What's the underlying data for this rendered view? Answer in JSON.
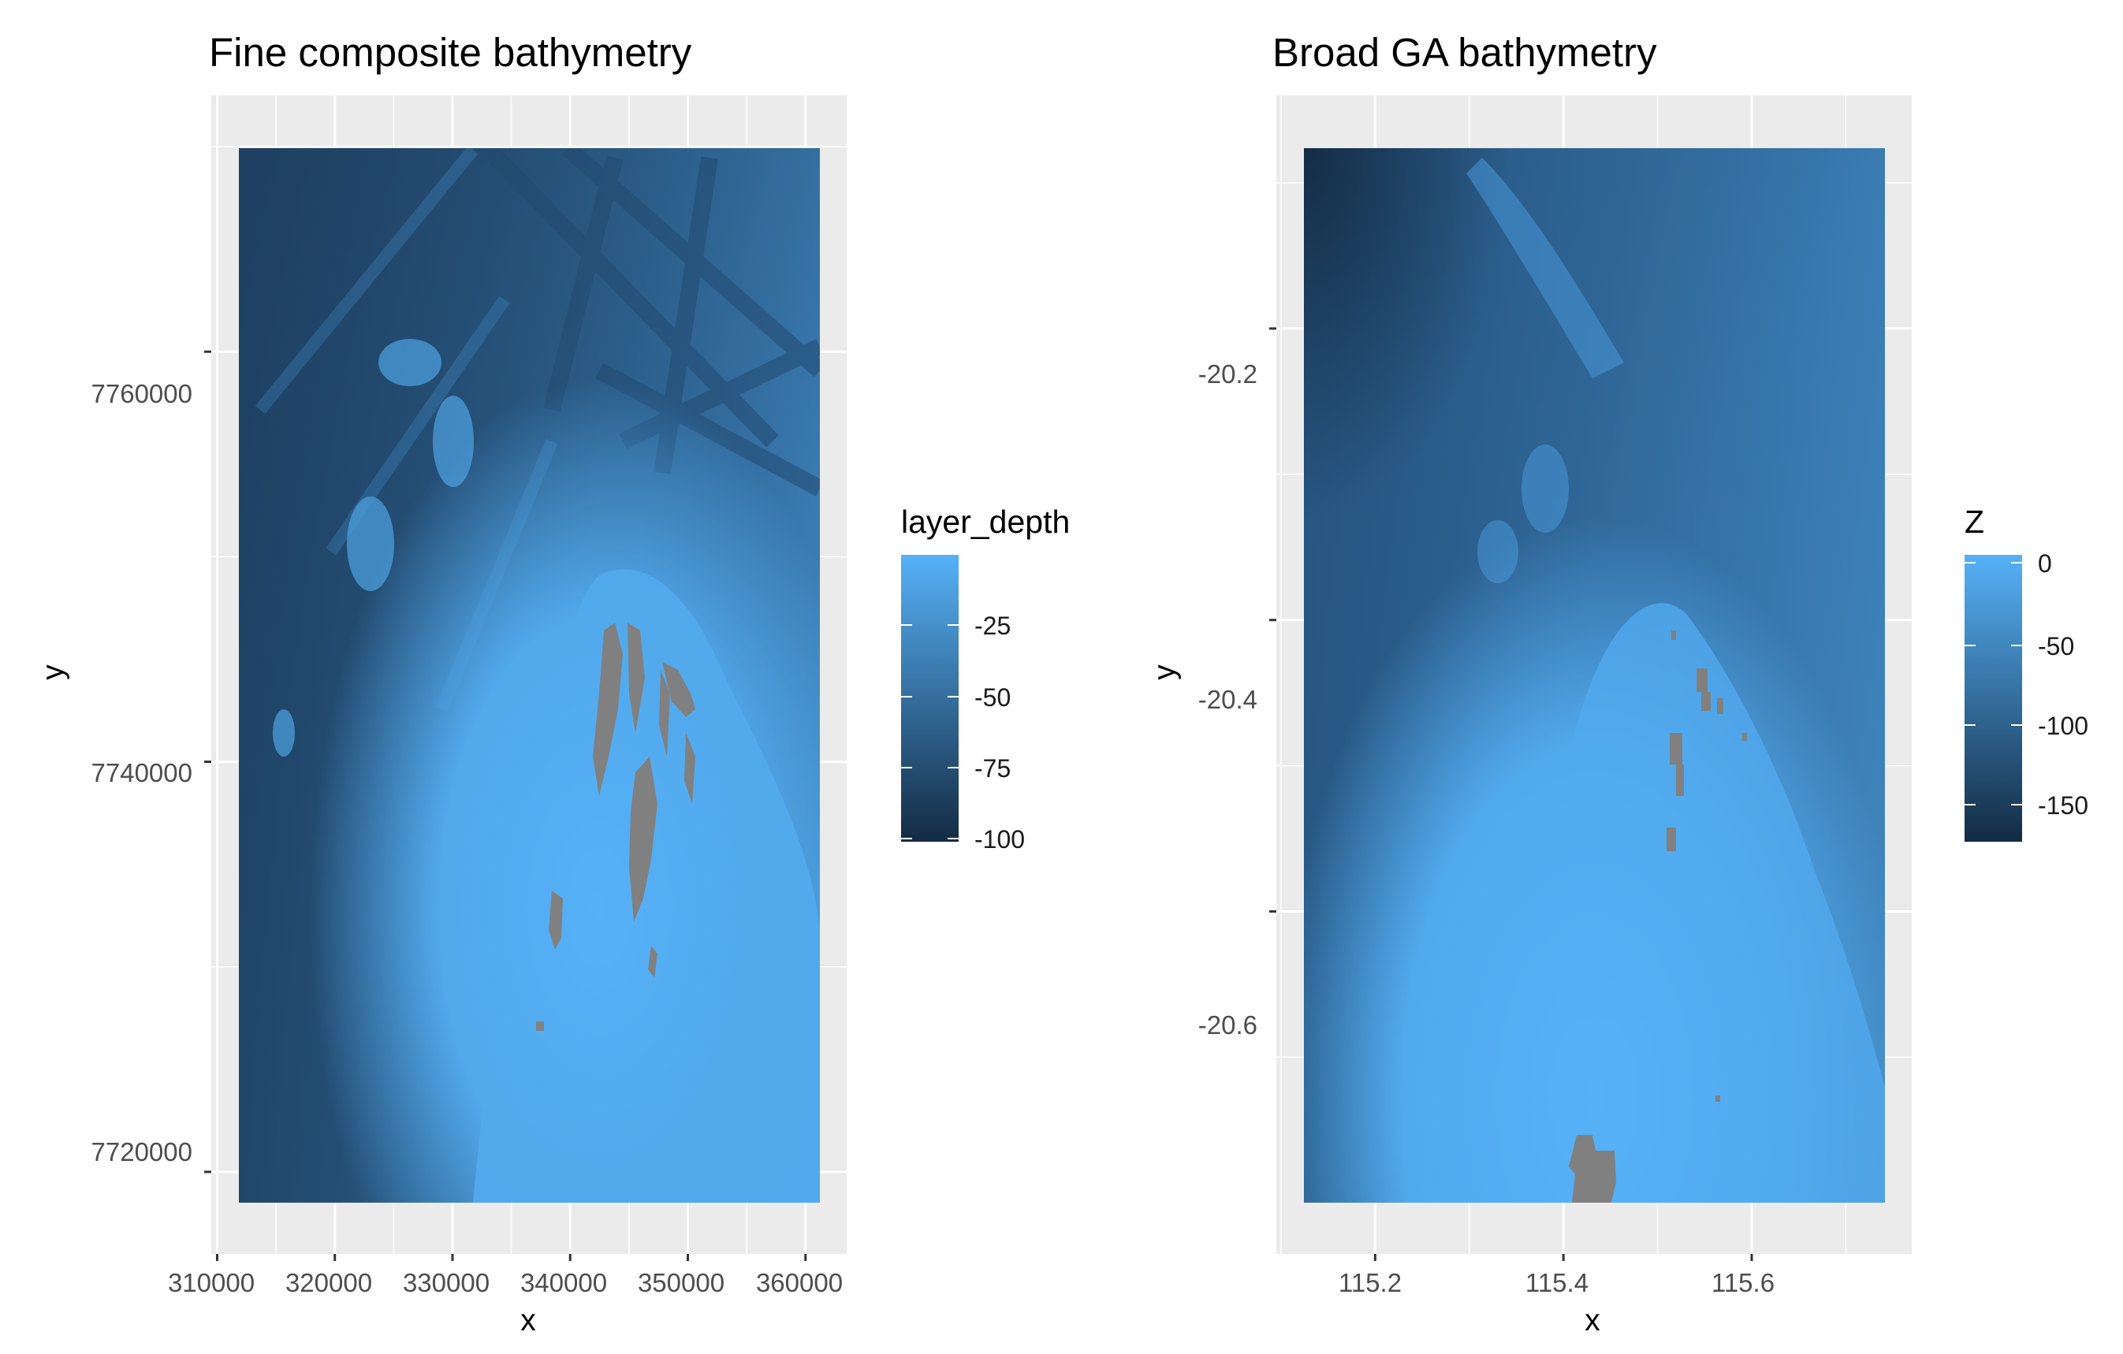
{
  "chart_data": [
    {
      "type": "heatmap",
      "title": "Fine composite bathymetry",
      "xlabel": "x",
      "ylabel": "y",
      "xlim": [
        309500,
        363500
      ],
      "ylim": [
        7716000,
        7772500
      ],
      "raster_extent": {
        "x": [
          312000,
          361500
        ],
        "y": [
          7717500,
          7773000
        ]
      },
      "grid": true,
      "x_ticks": [
        310000,
        320000,
        330000,
        340000,
        350000,
        360000
      ],
      "x_tick_labels": [
        "310000",
        "320000",
        "330000",
        "340000",
        "350000",
        "360000"
      ],
      "y_ticks": [
        7720000,
        7740000,
        7760000
      ],
      "y_tick_labels": [
        "7720000",
        "7740000",
        "7760000"
      ],
      "legend": {
        "title": "layer_depth",
        "position": "right",
        "range": [
          -105,
          -5
        ],
        "ticks": [
          -25,
          -50,
          -75,
          -100
        ],
        "tick_labels": [
          "-25",
          "-50",
          "-75",
          "-100"
        ],
        "colors": [
          "#132b43",
          "#56b1f7"
        ]
      },
      "na_color": "#808080",
      "depth_field_description_shown": false
    },
    {
      "type": "heatmap",
      "title": "Broad GA bathymetry",
      "xlabel": "x",
      "ylabel": "y",
      "xlim": [
        115.095,
        115.77
      ],
      "ylim": [
        -20.835,
        -20.04
      ],
      "raster_extent": {
        "x": [
          115.125,
          115.74
        ],
        "y": [
          -20.805,
          -20.07
        ]
      },
      "grid": true,
      "x_ticks": [
        115.2,
        115.4,
        115.6
      ],
      "x_tick_labels": [
        "115.2",
        "115.4",
        "115.6"
      ],
      "y_ticks": [
        -20.2,
        -20.4,
        -20.6
      ],
      "y_tick_labels": [
        "-20.2",
        "-20.4",
        "-20.6"
      ],
      "legend": {
        "title": "Z",
        "position": "right",
        "range": [
          -180,
          5
        ],
        "ticks": [
          0,
          -50,
          -100,
          -150
        ],
        "tick_labels": [
          "0",
          "-50",
          "-100",
          "-150"
        ],
        "colors": [
          "#132b43",
          "#56b1f7"
        ]
      },
      "na_color": "#808080"
    }
  ]
}
